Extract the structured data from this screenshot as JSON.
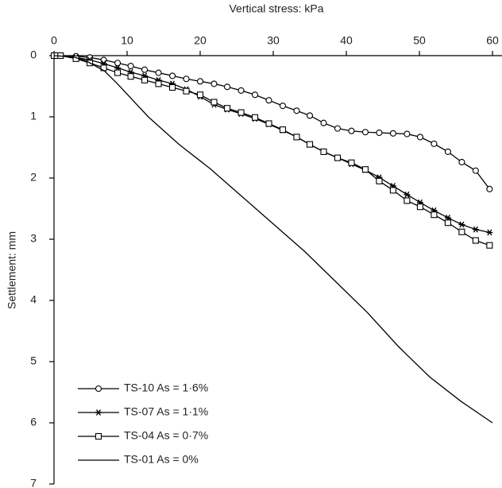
{
  "chart_data": {
    "type": "line",
    "xlabel": "Vertical stress: kPa",
    "ylabel": "Settlement: mm",
    "xlim": [
      0,
      61.3
    ],
    "xticks": [
      0,
      10,
      20,
      30,
      40,
      50,
      60
    ],
    "ylim": [
      0,
      7
    ],
    "yticks": [
      0,
      1,
      2,
      3,
      4,
      5,
      6,
      7
    ],
    "y_inverted": true,
    "x_axis_position": "top",
    "legend": "lower left",
    "series": [
      {
        "name": "TS-10 As = 1·6%",
        "color": "#000000",
        "marker": "circle",
        "x": [
          0,
          0.4,
          0.9,
          3,
          4.9,
          6.8,
          8.7,
          10.5,
          12.4,
          14.3,
          16.2,
          18.1,
          20,
          21.9,
          23.7,
          25.6,
          27.5,
          29.4,
          31.3,
          33.2,
          35,
          36.9,
          38.8,
          40.7,
          42.6,
          44.5,
          46.4,
          48.3,
          50.1,
          52,
          53.9,
          55.8,
          57.7,
          59.6
        ],
        "values": [
          0,
          0,
          0,
          0.01,
          0.03,
          0.07,
          0.12,
          0.17,
          0.23,
          0.28,
          0.33,
          0.38,
          0.42,
          0.46,
          0.51,
          0.57,
          0.64,
          0.73,
          0.82,
          0.9,
          0.98,
          1.1,
          1.19,
          1.23,
          1.25,
          1.26,
          1.27,
          1.28,
          1.33,
          1.44,
          1.57,
          1.74,
          1.88,
          2.18
        ]
      },
      {
        "name": "TS-07 As = 1·1%",
        "color": "#000000",
        "marker": "asterisk",
        "x": [
          0,
          0.4,
          0.9,
          3,
          4.9,
          6.8,
          8.7,
          10.5,
          12.4,
          14.3,
          16.2,
          18.1,
          20,
          21.9,
          23.7,
          25.6,
          27.5,
          29.4,
          31.3,
          33.2,
          35,
          36.9,
          38.8,
          40.7,
          42.6,
          44.5,
          46.4,
          48.3,
          50.1,
          52,
          53.9,
          55.8,
          57.7,
          59.6
        ],
        "values": [
          0,
          0,
          0,
          0.03,
          0.07,
          0.13,
          0.2,
          0.27,
          0.33,
          0.4,
          0.46,
          0.55,
          0.67,
          0.8,
          0.88,
          0.95,
          1.03,
          1.12,
          1.22,
          1.33,
          1.45,
          1.57,
          1.67,
          1.77,
          1.87,
          1.99,
          2.13,
          2.27,
          2.4,
          2.53,
          2.65,
          2.76,
          2.84,
          2.89
        ]
      },
      {
        "name": "TS-04 As = 0·7%",
        "color": "#000000",
        "marker": "square",
        "x": [
          0,
          0.4,
          0.9,
          3,
          4.9,
          6.8,
          8.7,
          10.5,
          12.4,
          14.3,
          16.2,
          18.1,
          20,
          21.9,
          23.7,
          25.6,
          27.5,
          29.4,
          31.3,
          33.2,
          35,
          36.9,
          38.8,
          40.7,
          42.6,
          44.5,
          46.4,
          48.3,
          50.1,
          52,
          53.9,
          55.8,
          57.7,
          59.6
        ],
        "values": [
          0,
          0,
          0,
          0.05,
          0.12,
          0.2,
          0.28,
          0.34,
          0.4,
          0.46,
          0.52,
          0.58,
          0.64,
          0.76,
          0.86,
          0.93,
          1.01,
          1.11,
          1.21,
          1.33,
          1.45,
          1.57,
          1.67,
          1.75,
          1.86,
          2.05,
          2.2,
          2.37,
          2.47,
          2.6,
          2.73,
          2.88,
          3.02,
          3.1
        ]
      },
      {
        "name": "TS-01 As = 0%",
        "color": "#000000",
        "marker": "none",
        "x": [
          0,
          2.6,
          4.3,
          6.9,
          8.6,
          12.9,
          17.1,
          21.4,
          25.7,
          30,
          34.3,
          38.6,
          42.9,
          47.1,
          51.4,
          55.7,
          60
        ],
        "values": [
          0,
          0.02,
          0.08,
          0.25,
          0.45,
          1.0,
          1.45,
          1.85,
          2.3,
          2.75,
          3.2,
          3.7,
          4.2,
          4.75,
          5.25,
          5.65,
          6.0
        ]
      }
    ]
  }
}
